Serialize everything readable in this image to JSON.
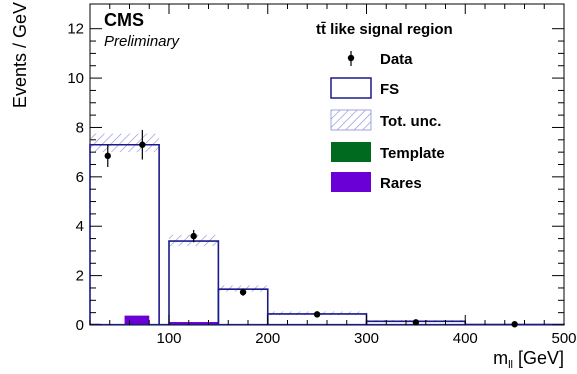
{
  "chart_data": {
    "type": "bar",
    "experiment": "CMS",
    "status": "Preliminary",
    "region_label_prefix": "t",
    "region_label_rest": " like signal region",
    "xlabel_main": "m",
    "xlabel_sub": "ll",
    "xlabel_unit": " [GeV]",
    "ylabel": "Events / GeV",
    "xlim": [
      20,
      500
    ],
    "ylim": [
      0,
      13
    ],
    "x_ticks": [
      100,
      200,
      300,
      400,
      500
    ],
    "y_ticks": [
      0,
      2,
      4,
      6,
      8,
      10,
      12
    ],
    "bin_edges": [
      20,
      90,
      100,
      150,
      200,
      300,
      400,
      500
    ],
    "series": [
      {
        "name": "FS",
        "values": [
          7.3,
          0.0,
          3.4,
          1.45,
          0.45,
          0.15,
          0.02
        ]
      },
      {
        "name": "Tot. unc.",
        "low": [
          7.0,
          0.0,
          3.2,
          1.35,
          0.4,
          0.12,
          0.01
        ],
        "high": [
          7.75,
          0.0,
          3.65,
          1.6,
          0.55,
          0.2,
          0.04
        ]
      },
      {
        "name": "Template",
        "values": [
          0,
          0,
          0,
          0,
          0,
          0,
          0
        ]
      },
      {
        "name": "Rares",
        "values": [
          0.0,
          0.0,
          0.0,
          0.0,
          0.0,
          0.0,
          0.0
        ]
      }
    ],
    "rares_bars": [
      {
        "x0": 20,
        "x1": 30,
        "value": 0.05
      },
      {
        "x0": 55,
        "x1": 80,
        "value": 0.38
      },
      {
        "x0": 100,
        "x1": 150,
        "value": 0.12
      }
    ],
    "data_points": [
      {
        "x": 38,
        "y": 6.85,
        "err": 0.45
      },
      {
        "x": 73,
        "y": 7.3,
        "err": 0.6
      },
      {
        "x": 125,
        "y": 3.6,
        "err": 0.25
      },
      {
        "x": 175,
        "y": 1.33,
        "err": 0.15
      },
      {
        "x": 250,
        "y": 0.43,
        "err": 0.05
      },
      {
        "x": 350,
        "y": 0.11,
        "err": 0.03
      },
      {
        "x": 450,
        "y": 0.03,
        "err": 0.02
      }
    ],
    "legend": [
      "Data",
      "FS",
      "Tot. unc.",
      "Template",
      "Rares"
    ],
    "legend_position": "top-right",
    "colors": {
      "fs_line": "#1a1a8c",
      "unc_hatch": "#8a8ad8",
      "template": "#006b1f",
      "rares": "#6a00d6",
      "data": "#000000"
    }
  }
}
